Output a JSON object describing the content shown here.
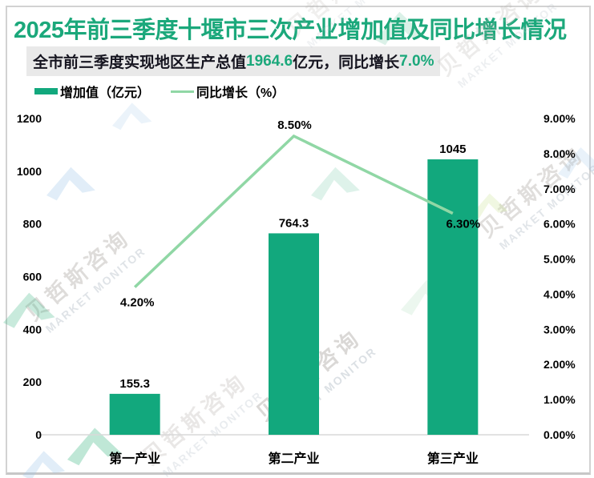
{
  "title": "2025年前三季度十堰市三次产业增加值及同比增长情况",
  "subtitle": {
    "part1": "全市前三季度实现地区生产总值",
    "value1": "1964.6",
    "part2": "亿元，同比增长",
    "value2": "7.0%"
  },
  "legend": {
    "bar_label": "增加值（亿元）",
    "line_label": "同比增长（%）"
  },
  "watermark": {
    "cn": "贝哲斯咨询",
    "en": "MARKET MONITOR"
  },
  "colors": {
    "title_green": "#1ba87b",
    "bar_green": "#12a87d",
    "line_green": "#90d7a5",
    "subtitle_bg": "#e9e9e9",
    "axis_line": "#d9d9d9",
    "label_black": "#000000"
  },
  "chart_data": {
    "type": "combo-bar-line",
    "categories": [
      "第一产业",
      "第二产业",
      "第三产业"
    ],
    "series": [
      {
        "name": "增加值（亿元）",
        "type": "bar",
        "axis": "left",
        "color": "#12a87d",
        "values": [
          155.3,
          764.3,
          1045
        ],
        "labels": [
          "155.3",
          "764.3",
          "1045"
        ]
      },
      {
        "name": "同比增长（%）",
        "type": "line",
        "axis": "right",
        "color": "#90d7a5",
        "values": [
          4.2,
          8.5,
          6.3
        ],
        "labels": [
          "4.20%",
          "8.50%",
          "6.30%"
        ]
      }
    ],
    "left_axis": {
      "min": 0,
      "max": 1200,
      "step": 200,
      "ticks": [
        "0",
        "200",
        "400",
        "600",
        "800",
        "1000",
        "1200"
      ]
    },
    "right_axis": {
      "min": 0,
      "max": 9,
      "step": 1,
      "ticks": [
        "0.00%",
        "1.00%",
        "2.00%",
        "3.00%",
        "4.00%",
        "5.00%",
        "6.00%",
        "7.00%",
        "8.00%",
        "9.00%"
      ]
    },
    "grid": false,
    "legend_position": "top-left"
  }
}
